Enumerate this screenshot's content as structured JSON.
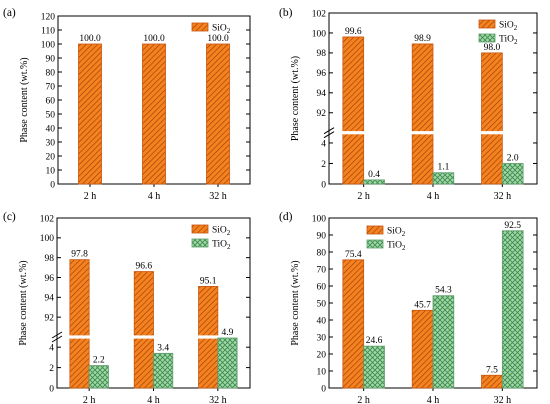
{
  "colors": {
    "sio2": "#F5821F",
    "tio2": "#9FD9A6",
    "sio2_hatch": "#9A3F08",
    "tio2_hatch": "#3F8A50"
  },
  "chart_data": [
    {
      "type": "bar",
      "panel_label": "(a)",
      "ylabel": "Phase content (wt.%)",
      "categories": [
        "2 h",
        "4 h",
        "32 h"
      ],
      "series": [
        {
          "name": "SiO₂",
          "values": [
            100.0,
            100.0,
            100.0
          ],
          "labels": [
            "100.0",
            "100.0",
            "100.0"
          ]
        }
      ],
      "ylim": [
        0,
        120
      ],
      "yticks": [
        0,
        10,
        20,
        30,
        40,
        50,
        60,
        70,
        80,
        90,
        100,
        110,
        120
      ],
      "legend": "top-right"
    },
    {
      "type": "bar",
      "panel_label": "(b)",
      "ylabel": "Phase content (wt.%)",
      "categories": [
        "2 h",
        "4 h",
        "32 h"
      ],
      "series": [
        {
          "name": "SiO₂",
          "values": [
            99.6,
            98.9,
            98.0
          ],
          "labels": [
            "99.6",
            "98.9",
            "98.0"
          ]
        },
        {
          "name": "TiO₂",
          "values": [
            0.4,
            1.1,
            2.0
          ],
          "labels": [
            "0.4",
            "1.1",
            "2.0"
          ]
        }
      ],
      "axis_break": {
        "lower": [
          0,
          5
        ],
        "upper": [
          90,
          102
        ]
      },
      "yticks_lower": [
        0,
        2,
        4
      ],
      "yticks_upper": [
        92,
        94,
        96,
        98,
        100,
        102
      ],
      "legend": "top-right"
    },
    {
      "type": "bar",
      "panel_label": "(c)",
      "ylabel": "Phase content (wt.%)",
      "categories": [
        "2 h",
        "4 h",
        "32 h"
      ],
      "series": [
        {
          "name": "SiO₂",
          "values": [
            97.8,
            96.6,
            95.1
          ],
          "labels": [
            "97.8",
            "96.6",
            "95.1"
          ]
        },
        {
          "name": "TiO₂",
          "values": [
            2.2,
            3.4,
            4.9
          ],
          "labels": [
            "2.2",
            "3.4",
            "4.9"
          ]
        }
      ],
      "axis_break": {
        "lower": [
          0,
          5
        ],
        "upper": [
          90,
          102
        ]
      },
      "yticks_lower": [
        0,
        2,
        4
      ],
      "yticks_upper": [
        92,
        94,
        96,
        98,
        100,
        102
      ],
      "legend": "top-right"
    },
    {
      "type": "bar",
      "panel_label": "(d)",
      "ylabel": "Phase content (wt.%)",
      "categories": [
        "2 h",
        "4 h",
        "32 h"
      ],
      "series": [
        {
          "name": "SiO₂",
          "values": [
            75.4,
            45.7,
            7.5
          ],
          "labels": [
            "75.4",
            "45.7",
            "7.5"
          ]
        },
        {
          "name": "TiO₂",
          "values": [
            24.6,
            54.3,
            92.5
          ],
          "labels": [
            "24.6",
            "54.3",
            "92.5"
          ]
        }
      ],
      "ylim": [
        0,
        100
      ],
      "yticks": [
        0,
        10,
        20,
        30,
        40,
        50,
        60,
        70,
        80,
        90,
        100
      ],
      "legend": "top-left"
    }
  ]
}
